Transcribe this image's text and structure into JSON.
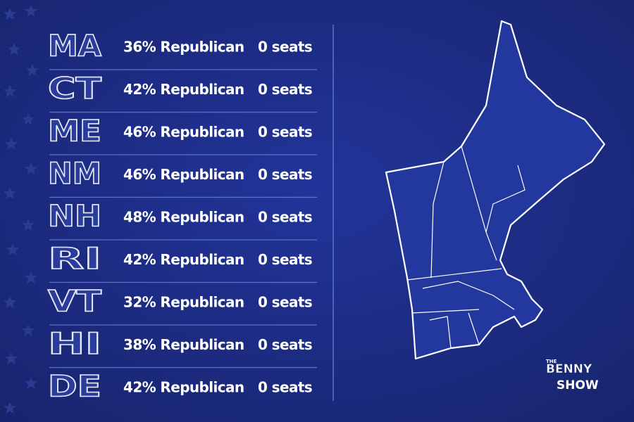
{
  "table": {
    "rows": [
      [
        "MA",
        "36% Republican",
        "0 seats"
      ],
      [
        "CT",
        "42% Republican",
        "0 seats"
      ],
      [
        "ME",
        "46% Republican",
        "0 seats"
      ],
      [
        "NM",
        "46% Republican",
        "0 seats"
      ],
      [
        "NH",
        "48% Republican",
        "0 seats"
      ],
      [
        "RI",
        "42% Republican",
        "0 seats"
      ],
      [
        "VT",
        "32% Republican",
        "0 seats"
      ],
      [
        "HI",
        "38% Republican",
        "0 seats"
      ],
      [
        "DE",
        "42% Republican",
        "0 seats"
      ]
    ]
  },
  "logo": {
    "the": "THE",
    "line1": "BENNY",
    "line2": "SHOW"
  }
}
